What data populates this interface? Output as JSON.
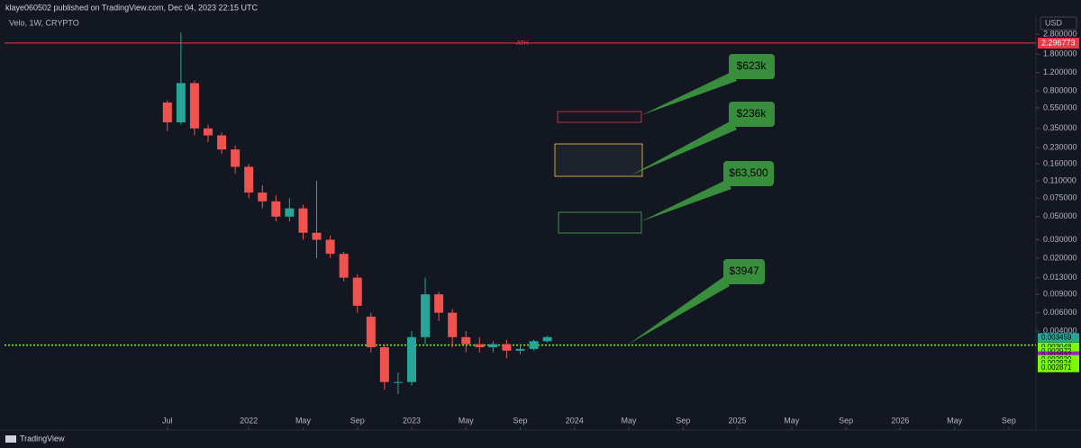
{
  "header": {
    "byline": "klaye060502 published on TradingView.com, Dec 04, 2023 22:15 UTC",
    "symbol": "Velo, 1W, CRYPTO",
    "currency": "USD",
    "brand": "TradingView"
  },
  "chart_data": {
    "type": "candlestick",
    "log_scale": true,
    "up_color": "#26a69a",
    "down_color": "#ef5350",
    "x": [
      "2021-07",
      "2021-08",
      "2021-09",
      "2021-10",
      "2021-11",
      "2021-12",
      "2022-01",
      "2022-02",
      "2022-03",
      "2022-04",
      "2022-05",
      "2022-06",
      "2022-07",
      "2022-08",
      "2022-09",
      "2022-10",
      "2022-11",
      "2022-12",
      "2023-01",
      "2023-02",
      "2023-03",
      "2023-04",
      "2023-05",
      "2023-06",
      "2023-07",
      "2023-08",
      "2023-09",
      "2023-10",
      "2023-11"
    ],
    "open": [
      0.62,
      0.4,
      0.95,
      0.35,
      0.3,
      0.22,
      0.15,
      0.085,
      0.07,
      0.05,
      0.06,
      0.035,
      0.03,
      0.022,
      0.013,
      0.0055,
      0.0028,
      0.0013,
      0.0013,
      0.0035,
      0.009,
      0.006,
      0.0035,
      0.003,
      0.0028,
      0.003,
      0.0026,
      0.0027,
      0.0032
    ],
    "high": [
      0.65,
      2.9,
      1.0,
      0.38,
      0.32,
      0.24,
      0.16,
      0.1,
      0.08,
      0.075,
      0.065,
      0.11,
      0.033,
      0.023,
      0.014,
      0.006,
      0.003,
      0.0016,
      0.004,
      0.013,
      0.0095,
      0.0065,
      0.004,
      0.0035,
      0.0032,
      0.0033,
      0.003,
      0.0033,
      0.0036
    ],
    "low": [
      0.33,
      0.38,
      0.3,
      0.26,
      0.2,
      0.13,
      0.075,
      0.06,
      0.045,
      0.045,
      0.03,
      0.02,
      0.02,
      0.012,
      0.006,
      0.0025,
      0.0011,
      0.001,
      0.0012,
      0.003,
      0.005,
      0.0028,
      0.0025,
      0.0025,
      0.0025,
      0.0022,
      0.0024,
      0.0026,
      0.0031
    ],
    "close": [
      0.4,
      0.95,
      0.35,
      0.3,
      0.22,
      0.15,
      0.085,
      0.07,
      0.05,
      0.06,
      0.035,
      0.03,
      0.022,
      0.013,
      0.007,
      0.0028,
      0.0013,
      0.0013,
      0.0035,
      0.009,
      0.006,
      0.0035,
      0.003,
      0.0028,
      0.003,
      0.0026,
      0.0027,
      0.0032,
      0.0035
    ],
    "xlim": [
      "2020-07",
      "2026-11"
    ],
    "xticks": [
      {
        "value": "2021-07",
        "label": "Jul"
      },
      {
        "value": "2022-01",
        "label": "2022"
      },
      {
        "value": "2022-05",
        "label": "May"
      },
      {
        "value": "2022-09",
        "label": "Sep"
      },
      {
        "value": "2023-01",
        "label": "2023"
      },
      {
        "value": "2023-05",
        "label": "May"
      },
      {
        "value": "2023-09",
        "label": "Sep"
      },
      {
        "value": "2024-01",
        "label": "2024"
      },
      {
        "value": "2024-05",
        "label": "May"
      },
      {
        "value": "2024-09",
        "label": "Sep"
      },
      {
        "value": "2025-01",
        "label": "2025"
      },
      {
        "value": "2025-05",
        "label": "May"
      },
      {
        "value": "2025-09",
        "label": "Sep"
      },
      {
        "value": "2026-01",
        "label": "2026"
      },
      {
        "value": "2026-05",
        "label": "May"
      },
      {
        "value": "2026-09",
        "label": "Sep"
      }
    ],
    "ylim": [
      0.00062,
      4.16
    ],
    "yticks": [
      {
        "value": 2.8,
        "label": "2.800000"
      },
      {
        "value": 1.8,
        "label": "1.800000"
      },
      {
        "value": 1.2,
        "label": "1.200000"
      },
      {
        "value": 0.8,
        "label": "0.800000"
      },
      {
        "value": 0.55,
        "label": "0.550000"
      },
      {
        "value": 0.35,
        "label": "0.350000"
      },
      {
        "value": 0.23,
        "label": "0.230000"
      },
      {
        "value": 0.16,
        "label": "0.160000"
      },
      {
        "value": 0.11,
        "label": "0.110000"
      },
      {
        "value": 0.075,
        "label": "0.075000"
      },
      {
        "value": 0.05,
        "label": "0.050000"
      },
      {
        "value": 0.03,
        "label": "0.030000"
      },
      {
        "value": 0.02,
        "label": "0.020000"
      },
      {
        "value": 0.013,
        "label": "0.013000"
      },
      {
        "value": 0.009,
        "label": "0.009000"
      },
      {
        "value": 0.006,
        "label": "0.006000"
      },
      {
        "value": 0.004,
        "label": "0.004000"
      }
    ],
    "ath": {
      "label": "ATH",
      "value": 2.296773,
      "color": "#f23645"
    },
    "price_line": {
      "value": 0.002937,
      "color": "#7cfc00"
    },
    "price_labels": [
      {
        "value": 0.003459,
        "color": "#26a69a"
      },
      {
        "value": 0.003048,
        "color": "#7cfc00"
      },
      {
        "value": 0.002972,
        "color": "#7cfc00"
      },
      {
        "value": 0.002937,
        "color": "#9c27b0"
      },
      {
        "value": 0.002929,
        "color": "#7cfc00"
      },
      {
        "value": 0.002924,
        "color": "#7cfc00"
      },
      {
        "value": 0.002871,
        "color": "#7cfc00"
      }
    ]
  },
  "callouts": [
    "$623k",
    "$236k",
    "$63,500",
    "$3947"
  ]
}
